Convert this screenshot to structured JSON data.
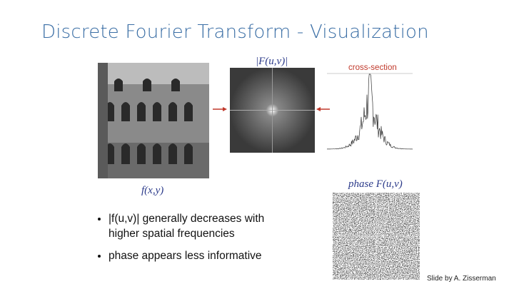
{
  "slide": {
    "title": "Discrete Fourier Transform - Visualization",
    "images": {
      "spatial_label": "f(x,y)",
      "magnitude_label": "|F(u,v)|",
      "cross_section_label": "cross-section",
      "phase_label": "phase F(u,v)"
    },
    "bullets": [
      "|f(u,v)| generally decreases with higher spatial frequencies",
      "phase appears less informative"
    ],
    "credit": "Slide by A. Zisserman"
  }
}
